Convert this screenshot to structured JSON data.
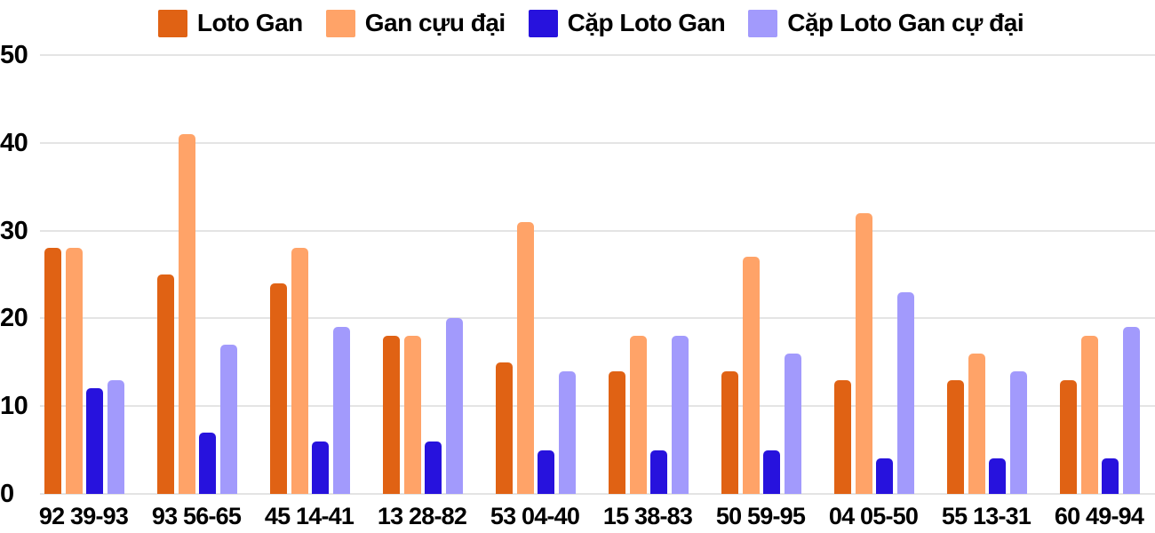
{
  "chart_data": {
    "type": "bar",
    "title": "",
    "categories": [
      "92 39-93",
      "93 56-65",
      "45 14-41",
      "13 28-82",
      "53 04-40",
      "15 38-83",
      "50 59-95",
      "04 05-50",
      "55 13-31",
      "60 49-94"
    ],
    "series": [
      {
        "name": "Loto Gan",
        "color": "#e06214",
        "values": [
          28,
          25,
          24,
          18,
          15,
          14,
          14,
          13,
          13,
          13
        ]
      },
      {
        "name": "Gan cựu đại",
        "color": "#ffa368",
        "values": [
          28,
          41,
          28,
          18,
          31,
          18,
          27,
          32,
          16,
          18
        ]
      },
      {
        "name": "Cặp Loto Gan",
        "color": "#2712dd",
        "values": [
          12,
          7,
          6,
          6,
          5,
          5,
          5,
          4,
          4,
          4
        ]
      },
      {
        "name": "Cặp Loto Gan cự đại",
        "color": "#a29afc",
        "values": [
          13,
          17,
          19,
          20,
          14,
          18,
          16,
          23,
          14,
          19
        ]
      }
    ],
    "yaxis": {
      "ticks": [
        0,
        10,
        20,
        30,
        40,
        50
      ],
      "min": 0,
      "max": 50
    },
    "xlabel": "",
    "ylabel": "",
    "grid": true,
    "legend_position": "top"
  },
  "colors": {
    "grid": "#e4e4e4",
    "text": "#000000",
    "background": "#ffffff"
  }
}
